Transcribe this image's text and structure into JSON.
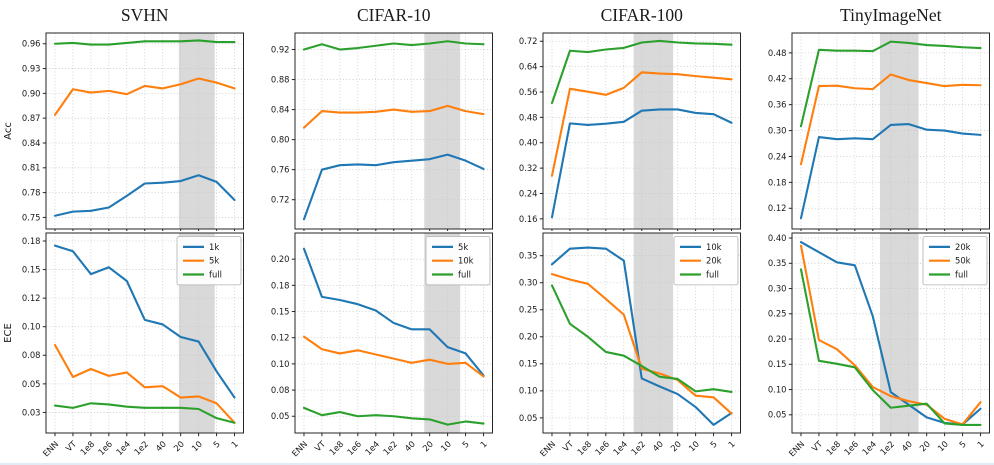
{
  "figure": {
    "column_titles": [
      "SVHN",
      "CIFAR-10",
      "CIFAR-100",
      "TinyImageNet"
    ],
    "row_ylabels": [
      "Acc",
      "ECE"
    ],
    "x_tick_labels": [
      "ENN",
      "VT",
      "1e8",
      "1e6",
      "1e4",
      "1e2",
      "40",
      "20",
      "10",
      "5",
      "1"
    ],
    "colors": {
      "series_blue": "#1f77b4",
      "series_orange": "#ff7f0e",
      "series_green": "#2ca02c",
      "highlight_band": "#d9d9d9",
      "grid": "#c9c9c9",
      "spine": "#262626",
      "text": "#1a1a1a",
      "legend_border": "#b0b0b0",
      "legend_bg": "#ffffff"
    }
  },
  "chart_data": [
    {
      "id": "svhn-acc",
      "type": "line",
      "row": 0,
      "col": 0,
      "title": "SVHN",
      "ylabel": "Acc",
      "x_categories": [
        "ENN",
        "VT",
        "1e8",
        "1e6",
        "1e4",
        "1e2",
        "40",
        "20",
        "10",
        "5",
        "1"
      ],
      "show_x_tick_labels": false,
      "ylim": [
        0.736,
        0.973
      ],
      "yticks": [
        {
          "v": 0.75,
          "label": "0.75"
        },
        {
          "v": 0.78,
          "label": "0.78"
        },
        {
          "v": 0.81,
          "label": "0.81"
        },
        {
          "v": 0.84,
          "label": "0.84"
        },
        {
          "v": 0.87,
          "label": "0.87"
        },
        {
          "v": 0.9,
          "label": "0.90"
        },
        {
          "v": 0.93,
          "label": "0.93"
        },
        {
          "v": 0.96,
          "label": "0.96"
        }
      ],
      "highlight_band_x": [
        6.9,
        8.9
      ],
      "legend": null,
      "series": [
        {
          "name": "1k",
          "color": "#1f77b4",
          "values": [
            0.752,
            0.757,
            0.758,
            0.762,
            0.776,
            0.791,
            0.792,
            0.794,
            0.801,
            0.793,
            0.771
          ]
        },
        {
          "name": "5k",
          "color": "#ff7f0e",
          "values": [
            0.874,
            0.905,
            0.901,
            0.903,
            0.899,
            0.909,
            0.906,
            0.911,
            0.918,
            0.913,
            0.906
          ]
        },
        {
          "name": "full",
          "color": "#2ca02c",
          "values": [
            0.96,
            0.961,
            0.959,
            0.959,
            0.961,
            0.963,
            0.963,
            0.963,
            0.964,
            0.962,
            0.962
          ]
        }
      ]
    },
    {
      "id": "cifar10-acc",
      "type": "line",
      "row": 0,
      "col": 1,
      "title": "CIFAR-10",
      "ylabel": "",
      "x_categories": [
        "ENN",
        "VT",
        "1e8",
        "1e6",
        "1e4",
        "1e2",
        "40",
        "20",
        "10",
        "5",
        "1"
      ],
      "show_x_tick_labels": false,
      "ylim": [
        0.681,
        0.942
      ],
      "yticks": [
        {
          "v": 0.72,
          "label": "0.72"
        },
        {
          "v": 0.76,
          "label": "0.76"
        },
        {
          "v": 0.8,
          "label": "0.80"
        },
        {
          "v": 0.84,
          "label": "0.84"
        },
        {
          "v": 0.88,
          "label": "0.88"
        },
        {
          "v": 0.92,
          "label": "0.92"
        }
      ],
      "highlight_band_x": [
        6.7,
        8.7
      ],
      "legend": null,
      "series": [
        {
          "name": "5k",
          "color": "#1f77b4",
          "values": [
            0.694,
            0.76,
            0.766,
            0.767,
            0.766,
            0.77,
            0.772,
            0.774,
            0.78,
            0.772,
            0.761
          ]
        },
        {
          "name": "10k",
          "color": "#ff7f0e",
          "values": [
            0.816,
            0.838,
            0.836,
            0.836,
            0.837,
            0.84,
            0.837,
            0.838,
            0.845,
            0.838,
            0.834
          ]
        },
        {
          "name": "full",
          "color": "#2ca02c",
          "values": [
            0.92,
            0.927,
            0.92,
            0.922,
            0.925,
            0.928,
            0.926,
            0.928,
            0.931,
            0.928,
            0.927
          ]
        }
      ]
    },
    {
      "id": "cifar100-acc",
      "type": "line",
      "row": 0,
      "col": 2,
      "title": "CIFAR-100",
      "ylabel": "",
      "x_categories": [
        "ENN",
        "VT",
        "1e8",
        "1e6",
        "1e4",
        "1e2",
        "40",
        "20",
        "10",
        "5",
        "1"
      ],
      "show_x_tick_labels": false,
      "ylim": [
        0.128,
        0.746
      ],
      "yticks": [
        {
          "v": 0.16,
          "label": "0.16"
        },
        {
          "v": 0.24,
          "label": "0.24"
        },
        {
          "v": 0.32,
          "label": "0.32"
        },
        {
          "v": 0.4,
          "label": "0.40"
        },
        {
          "v": 0.48,
          "label": "0.48"
        },
        {
          "v": 0.56,
          "label": "0.56"
        },
        {
          "v": 0.64,
          "label": "0.64"
        },
        {
          "v": 0.72,
          "label": "0.72"
        }
      ],
      "highlight_band_x": [
        4.55,
        6.75
      ],
      "legend": null,
      "series": [
        {
          "name": "10k",
          "color": "#1f77b4",
          "values": [
            0.165,
            0.461,
            0.456,
            0.46,
            0.466,
            0.501,
            0.505,
            0.505,
            0.494,
            0.49,
            0.463
          ]
        },
        {
          "name": "20k",
          "color": "#ff7f0e",
          "values": [
            0.296,
            0.57,
            0.561,
            0.551,
            0.573,
            0.622,
            0.618,
            0.616,
            0.61,
            0.605,
            0.6
          ]
        },
        {
          "name": "full",
          "color": "#2ca02c",
          "values": [
            0.525,
            0.69,
            0.686,
            0.694,
            0.699,
            0.716,
            0.721,
            0.716,
            0.713,
            0.712,
            0.709
          ]
        }
      ]
    },
    {
      "id": "tinyimagenet-acc",
      "type": "line",
      "row": 0,
      "col": 3,
      "title": "TinyImageNet",
      "ylabel": "",
      "x_categories": [
        "ENN",
        "VT",
        "1e8",
        "1e6",
        "1e4",
        "1e2",
        "40",
        "20",
        "10",
        "5",
        "1"
      ],
      "show_x_tick_labels": false,
      "ylim": [
        0.072,
        0.526
      ],
      "yticks": [
        {
          "v": 0.12,
          "label": "0.12"
        },
        {
          "v": 0.18,
          "label": "0.18"
        },
        {
          "v": 0.24,
          "label": "0.24"
        },
        {
          "v": 0.3,
          "label": "0.30"
        },
        {
          "v": 0.36,
          "label": "0.36"
        },
        {
          "v": 0.42,
          "label": "0.42"
        },
        {
          "v": 0.48,
          "label": "0.48"
        }
      ],
      "highlight_band_x": [
        4.4,
        6.55
      ],
      "legend": null,
      "series": [
        {
          "name": "20k",
          "color": "#1f77b4",
          "values": [
            0.097,
            0.285,
            0.28,
            0.282,
            0.28,
            0.313,
            0.315,
            0.302,
            0.3,
            0.293,
            0.29
          ]
        },
        {
          "name": "50k",
          "color": "#ff7f0e",
          "values": [
            0.222,
            0.403,
            0.404,
            0.398,
            0.396,
            0.43,
            0.417,
            0.41,
            0.403,
            0.406,
            0.405
          ]
        },
        {
          "name": "full",
          "color": "#2ca02c",
          "values": [
            0.31,
            0.487,
            0.485,
            0.485,
            0.484,
            0.506,
            0.503,
            0.498,
            0.496,
            0.493,
            0.491
          ]
        }
      ]
    },
    {
      "id": "svhn-ece",
      "type": "line",
      "row": 1,
      "col": 0,
      "title": "",
      "ylabel": "ECE",
      "x_categories": [
        "ENN",
        "VT",
        "1e8",
        "1e6",
        "1e4",
        "1e2",
        "40",
        "20",
        "10",
        "5",
        "1"
      ],
      "show_x_tick_labels": true,
      "ylim": [
        0.007,
        0.182
      ],
      "yticks": [
        {
          "v": 0.025,
          "label": "0.03"
        },
        {
          "v": 0.05,
          "label": "0.05"
        },
        {
          "v": 0.075,
          "label": "0.08"
        },
        {
          "v": 0.1,
          "label": "0.10"
        },
        {
          "v": 0.125,
          "label": "0.12"
        },
        {
          "v": 0.15,
          "label": "0.15"
        },
        {
          "v": 0.175,
          "label": "0.18"
        }
      ],
      "highlight_band_x": [
        6.9,
        8.9
      ],
      "legend": {
        "position": "top-right",
        "entries": [
          "1k",
          "5k",
          "full"
        ]
      },
      "series": [
        {
          "name": "1k",
          "color": "#1f77b4",
          "values": [
            0.171,
            0.166,
            0.146,
            0.152,
            0.14,
            0.106,
            0.102,
            0.091,
            0.087,
            0.061,
            0.038
          ]
        },
        {
          "name": "5k",
          "color": "#ff7f0e",
          "values": [
            0.084,
            0.056,
            0.063,
            0.057,
            0.06,
            0.047,
            0.048,
            0.038,
            0.039,
            0.033,
            0.016
          ]
        },
        {
          "name": "full",
          "color": "#2ca02c",
          "values": [
            0.031,
            0.029,
            0.033,
            0.032,
            0.03,
            0.029,
            0.029,
            0.029,
            0.028,
            0.02,
            0.016
          ]
        }
      ]
    },
    {
      "id": "cifar10-ece",
      "type": "line",
      "row": 1,
      "col": 1,
      "title": "",
      "ylabel": "",
      "x_categories": [
        "ENN",
        "VT",
        "1e8",
        "1e6",
        "1e4",
        "1e2",
        "40",
        "20",
        "10",
        "5",
        "1"
      ],
      "show_x_tick_labels": true,
      "ylim": [
        0.034,
        0.225
      ],
      "yticks": [
        {
          "v": 0.05,
          "label": "0.05"
        },
        {
          "v": 0.075,
          "label": "0.08"
        },
        {
          "v": 0.1,
          "label": "0.10"
        },
        {
          "v": 0.125,
          "label": "0.12"
        },
        {
          "v": 0.15,
          "label": "0.15"
        },
        {
          "v": 0.175,
          "label": "0.18"
        },
        {
          "v": 0.2,
          "label": "0.20"
        }
      ],
      "highlight_band_x": [
        6.7,
        8.7
      ],
      "legend": {
        "position": "top-right",
        "entries": [
          "5k",
          "10k",
          "full"
        ]
      },
      "series": [
        {
          "name": "5k",
          "color": "#1f77b4",
          "values": [
            0.21,
            0.164,
            0.161,
            0.157,
            0.151,
            0.139,
            0.133,
            0.133,
            0.116,
            0.11,
            0.089
          ]
        },
        {
          "name": "10k",
          "color": "#ff7f0e",
          "values": [
            0.126,
            0.114,
            0.11,
            0.113,
            0.109,
            0.105,
            0.101,
            0.104,
            0.1,
            0.101,
            0.088
          ]
        },
        {
          "name": "full",
          "color": "#2ca02c",
          "values": [
            0.058,
            0.051,
            0.054,
            0.05,
            0.051,
            0.05,
            0.048,
            0.047,
            0.042,
            0.045,
            0.043
          ]
        }
      ]
    },
    {
      "id": "cifar100-ece",
      "type": "line",
      "row": 1,
      "col": 2,
      "title": "",
      "ylabel": "",
      "x_categories": [
        "ENN",
        "VT",
        "1e8",
        "1e6",
        "1e4",
        "1e2",
        "40",
        "20",
        "10",
        "5",
        "1"
      ],
      "show_x_tick_labels": true,
      "ylim": [
        0.022,
        0.392
      ],
      "yticks": [
        {
          "v": 0.05,
          "label": "0.05"
        },
        {
          "v": 0.1,
          "label": "0.10"
        },
        {
          "v": 0.15,
          "label": "0.15"
        },
        {
          "v": 0.2,
          "label": "0.20"
        },
        {
          "v": 0.25,
          "label": "0.25"
        },
        {
          "v": 0.3,
          "label": "0.30"
        },
        {
          "v": 0.35,
          "label": "0.35"
        }
      ],
      "highlight_band_x": [
        4.55,
        6.75
      ],
      "legend": {
        "position": "top-right",
        "entries": [
          "10k",
          "20k",
          "full"
        ]
      },
      "series": [
        {
          "name": "10k",
          "color": "#1f77b4",
          "values": [
            0.334,
            0.363,
            0.365,
            0.363,
            0.341,
            0.123,
            0.108,
            0.094,
            0.07,
            0.037,
            0.059
          ]
        },
        {
          "name": "20k",
          "color": "#ff7f0e",
          "values": [
            0.316,
            0.306,
            0.298,
            0.27,
            0.241,
            0.141,
            0.132,
            0.12,
            0.091,
            0.088,
            0.058
          ]
        },
        {
          "name": "full",
          "color": "#2ca02c",
          "values": [
            0.295,
            0.224,
            0.2,
            0.172,
            0.165,
            0.146,
            0.126,
            0.122,
            0.099,
            0.103,
            0.098
          ]
        }
      ]
    },
    {
      "id": "tinyimagenet-ece",
      "type": "line",
      "row": 1,
      "col": 3,
      "title": "",
      "ylabel": "",
      "x_categories": [
        "ENN",
        "VT",
        "1e8",
        "1e6",
        "1e4",
        "1e2",
        "40",
        "20",
        "10",
        "5",
        "1"
      ],
      "show_x_tick_labels": true,
      "ylim": [
        0.014,
        0.41
      ],
      "yticks": [
        {
          "v": 0.05,
          "label": "0.05"
        },
        {
          "v": 0.1,
          "label": "0.10"
        },
        {
          "v": 0.15,
          "label": "0.15"
        },
        {
          "v": 0.2,
          "label": "0.20"
        },
        {
          "v": 0.25,
          "label": "0.25"
        },
        {
          "v": 0.3,
          "label": "0.30"
        },
        {
          "v": 0.35,
          "label": "0.35"
        },
        {
          "v": 0.4,
          "label": "0.40"
        }
      ],
      "highlight_band_x": [
        4.4,
        6.55
      ],
      "legend": {
        "position": "top-right",
        "entries": [
          "20k",
          "50k",
          "full"
        ]
      },
      "series": [
        {
          "name": "20k",
          "color": "#1f77b4",
          "values": [
            0.392,
            0.372,
            0.352,
            0.346,
            0.245,
            0.095,
            0.07,
            0.045,
            0.034,
            0.031,
            0.062
          ]
        },
        {
          "name": "50k",
          "color": "#ff7f0e",
          "values": [
            0.385,
            0.198,
            0.18,
            0.148,
            0.105,
            0.087,
            0.077,
            0.07,
            0.042,
            0.031,
            0.075
          ]
        },
        {
          "name": "full",
          "color": "#2ca02c",
          "values": [
            0.338,
            0.157,
            0.151,
            0.144,
            0.099,
            0.064,
            0.068,
            0.072,
            0.033,
            0.03,
            0.03
          ]
        }
      ]
    }
  ]
}
